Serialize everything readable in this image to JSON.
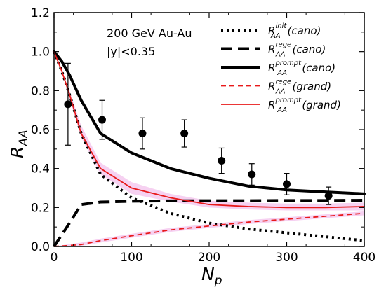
{
  "chart_data": {
    "type": "line",
    "title": "",
    "annotations": [
      "200 GeV Au-Au",
      "|y|<0.35"
    ],
    "xlabel": {
      "main": "N",
      "sub": "p"
    },
    "ylabel": {
      "main": "R",
      "sub": "AA"
    },
    "xlim": [
      0,
      400
    ],
    "ylim": [
      0,
      1.2
    ],
    "xticks": [
      0,
      100,
      200,
      300,
      400
    ],
    "yticks": [
      0.0,
      0.2,
      0.4,
      0.6,
      0.8,
      1.0,
      1.2
    ],
    "xtick_labels": [
      "0",
      "100",
      "200",
      "300",
      "400"
    ],
    "ytick_labels": [
      "0.0",
      "0.2",
      "0.4",
      "0.6",
      "0.8",
      "1.0",
      "1.2"
    ],
    "grid": false,
    "legend_position": "top-right",
    "series": [
      {
        "name": "R_AA^init(cano)",
        "legend": {
          "main": "R",
          "sub": "AA",
          "sup": "init",
          "tail": "(cano)"
        },
        "style": "dotted",
        "color": "#000000",
        "x": [
          0,
          10,
          20,
          35,
          60,
          100,
          150,
          200,
          250,
          300,
          350,
          400
        ],
        "y": [
          1.0,
          0.9,
          0.78,
          0.58,
          0.37,
          0.25,
          0.17,
          0.12,
          0.09,
          0.07,
          0.05,
          0.03
        ]
      },
      {
        "name": "R_AA^rege(cano)",
        "legend": {
          "main": "R",
          "sub": "AA",
          "sup": "rege",
          "tail": "(cano)"
        },
        "style": "dashed",
        "color": "#000000",
        "x": [
          0,
          10,
          20,
          35,
          60,
          100,
          150,
          200,
          250,
          300,
          350,
          400
        ],
        "y": [
          0.0,
          0.06,
          0.12,
          0.215,
          0.228,
          0.232,
          0.234,
          0.235,
          0.235,
          0.236,
          0.236,
          0.237
        ]
      },
      {
        "name": "R_AA^prompt(cano)",
        "legend": {
          "main": "R",
          "sub": "AA",
          "sup": "prompt",
          "tail": "(cano)"
        },
        "style": "solid-thick",
        "color": "#000000",
        "x": [
          0,
          10,
          20,
          35,
          60,
          100,
          150,
          200,
          250,
          300,
          350,
          400
        ],
        "y": [
          1.0,
          0.95,
          0.88,
          0.75,
          0.58,
          0.48,
          0.4,
          0.35,
          0.31,
          0.29,
          0.28,
          0.27
        ]
      },
      {
        "name": "R_AA^rege(grand)",
        "legend": {
          "main": "R",
          "sub": "AA",
          "sup": "rege",
          "tail": "(grand)"
        },
        "style": "dashed-thin",
        "color": "#e8191a",
        "x": [
          0,
          20,
          35,
          60,
          100,
          150,
          200,
          250,
          300,
          350,
          400
        ],
        "y": [
          0.0,
          0.005,
          0.01,
          0.03,
          0.055,
          0.085,
          0.105,
          0.125,
          0.14,
          0.155,
          0.17
        ]
      },
      {
        "name": "R_AA^prompt(grand)",
        "legend": {
          "main": "R",
          "sub": "AA",
          "sup": "prompt",
          "tail": "(grand)"
        },
        "style": "solid",
        "color": "#e8191a",
        "x": [
          0,
          10,
          20,
          35,
          60,
          100,
          150,
          200,
          250,
          300,
          350,
          400
        ],
        "y": [
          1.0,
          0.9,
          0.78,
          0.58,
          0.4,
          0.3,
          0.25,
          0.215,
          0.205,
          0.2,
          0.2,
          0.205
        ]
      }
    ],
    "data_points": {
      "x": [
        18,
        62,
        114,
        168,
        216,
        255,
        300,
        354
      ],
      "y": [
        0.73,
        0.65,
        0.58,
        0.58,
        0.44,
        0.37,
        0.32,
        0.26
      ],
      "err": [
        0.21,
        0.1,
        0.08,
        0.07,
        0.065,
        0.055,
        0.055,
        0.045
      ]
    },
    "band": {
      "color": "#f4c6ee",
      "x": [
        20,
        35,
        60,
        100,
        150,
        200,
        250,
        300,
        350,
        400
      ],
      "upper": [
        0.8,
        0.62,
        0.43,
        0.33,
        0.27,
        0.235,
        0.225,
        0.22,
        0.22,
        0.225
      ],
      "lower": [
        0.76,
        0.56,
        0.37,
        0.27,
        0.23,
        0.2,
        0.19,
        0.185,
        0.185,
        0.185
      ]
    },
    "band_rege": {
      "color": "#f4c6ee",
      "x": [
        0,
        20,
        35,
        60,
        100,
        150,
        200,
        250,
        300,
        350,
        400
      ],
      "upper": [
        0.0,
        0.012,
        0.02,
        0.04,
        0.065,
        0.095,
        0.115,
        0.135,
        0.15,
        0.165,
        0.18
      ],
      "lower": [
        0.0,
        0.0,
        0.003,
        0.02,
        0.045,
        0.075,
        0.095,
        0.115,
        0.13,
        0.145,
        0.16
      ]
    }
  }
}
